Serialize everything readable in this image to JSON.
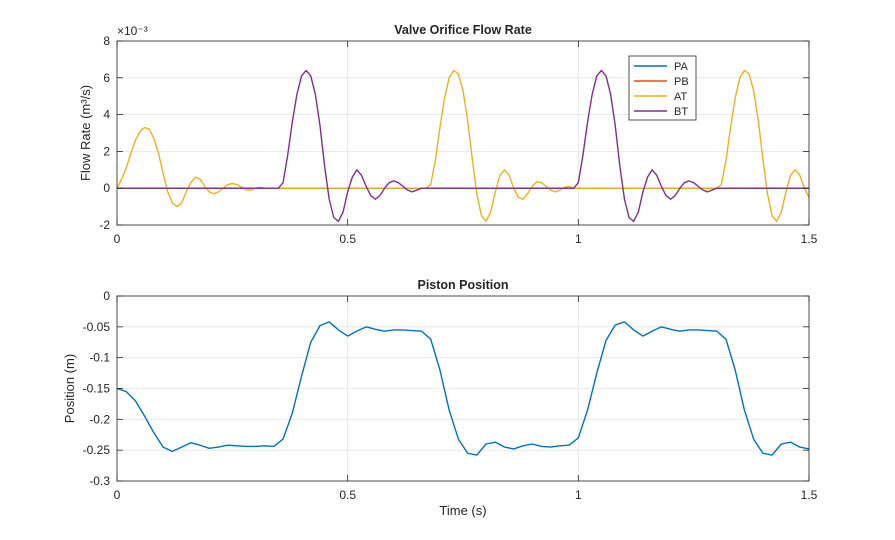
{
  "chart_data": [
    {
      "type": "line",
      "title": "Valve Orifice Flow Rate",
      "ylabel": "Flow  Rate  (m³/s)",
      "xlabel": "",
      "xlim": [
        0,
        1.5
      ],
      "ylim": [
        -2,
        8
      ],
      "y_exponent_label": "×10⁻³",
      "xticks": [
        0,
        0.5,
        1,
        1.5
      ],
      "xtick_labels": [
        "0",
        "0.5",
        "1",
        "1.5"
      ],
      "yticks": [
        -2,
        0,
        2,
        4,
        6,
        8
      ],
      "ytick_labels": [
        "-2",
        "0",
        "2",
        "4",
        "6",
        "8"
      ],
      "grid": true,
      "legend": "top-right",
      "series": [
        {
          "name": "PA",
          "color": "#0072BD",
          "x": [
            0,
            1.5
          ],
          "y": [
            0,
            0
          ]
        },
        {
          "name": "PB",
          "color": "#D95319",
          "x": [
            0,
            1.5
          ],
          "y": [
            0,
            0
          ]
        },
        {
          "name": "AT",
          "color": "#EDB120",
          "x": [
            0,
            0.01,
            0.02,
            0.03,
            0.04,
            0.05,
            0.06,
            0.07,
            0.08,
            0.09,
            0.1,
            0.11,
            0.12,
            0.13,
            0.14,
            0.15,
            0.16,
            0.17,
            0.18,
            0.19,
            0.2,
            0.21,
            0.22,
            0.23,
            0.24,
            0.25,
            0.26,
            0.27,
            0.28,
            0.29,
            0.3,
            0.31,
            0.32,
            0.33,
            0.35,
            0.36,
            0.67,
            0.68,
            0.69,
            0.7,
            0.71,
            0.72,
            0.73,
            0.74,
            0.75,
            0.76,
            0.77,
            0.78,
            0.79,
            0.8,
            0.81,
            0.82,
            0.83,
            0.84,
            0.85,
            0.86,
            0.87,
            0.88,
            0.89,
            0.9,
            0.91,
            0.92,
            0.93,
            0.94,
            0.95,
            0.96,
            0.97,
            0.98,
            0.99,
            1.3,
            1.31,
            1.32,
            1.33,
            1.34,
            1.35,
            1.36,
            1.37,
            1.38,
            1.39,
            1.4,
            1.41,
            1.42,
            1.43,
            1.44,
            1.45,
            1.46,
            1.47,
            1.48,
            1.49,
            1.5
          ],
          "y": [
            0,
            0.5,
            1.1,
            1.9,
            2.6,
            3.1,
            3.3,
            3.2,
            2.7,
            1.9,
            0.8,
            -0.2,
            -0.8,
            -1.0,
            -0.8,
            -0.2,
            0.3,
            0.6,
            0.5,
            0.1,
            -0.2,
            -0.3,
            -0.2,
            0.0,
            0.2,
            0.25,
            0.2,
            0.05,
            -0.1,
            -0.1,
            0.0,
            0.05,
            0.0,
            0.0,
            0.0,
            0.0,
            0.0,
            0.2,
            1.5,
            3.3,
            4.9,
            6.0,
            6.4,
            6.2,
            5.3,
            3.7,
            1.6,
            -0.3,
            -1.5,
            -1.8,
            -1.3,
            -0.2,
            0.7,
            1.0,
            0.7,
            0.0,
            -0.5,
            -0.6,
            -0.3,
            0.1,
            0.35,
            0.3,
            0.1,
            -0.1,
            -0.2,
            -0.1,
            0.05,
            0.1,
            0.0,
            0.0,
            0.2,
            1.5,
            3.3,
            4.9,
            6.0,
            6.4,
            6.2,
            5.3,
            3.7,
            1.6,
            -0.3,
            -1.5,
            -1.8,
            -1.3,
            -0.2,
            0.7,
            1.0,
            0.7,
            0.0,
            -0.5
          ]
        },
        {
          "name": "BT",
          "color": "#7E2F8E",
          "x": [
            0,
            0.35,
            0.36,
            0.37,
            0.38,
            0.39,
            0.4,
            0.41,
            0.42,
            0.43,
            0.44,
            0.45,
            0.46,
            0.47,
            0.48,
            0.49,
            0.5,
            0.51,
            0.52,
            0.53,
            0.54,
            0.55,
            0.56,
            0.57,
            0.58,
            0.59,
            0.6,
            0.61,
            0.62,
            0.63,
            0.64,
            0.65,
            0.66,
            0.67,
            0.98,
            0.99,
            1.0,
            1.01,
            1.02,
            1.03,
            1.04,
            1.05,
            1.06,
            1.07,
            1.08,
            1.09,
            1.1,
            1.11,
            1.12,
            1.13,
            1.14,
            1.15,
            1.16,
            1.17,
            1.18,
            1.19,
            1.2,
            1.21,
            1.22,
            1.23,
            1.24,
            1.25,
            1.26,
            1.27,
            1.28,
            1.29,
            1.3,
            1.5
          ],
          "y": [
            0,
            0.0,
            0.3,
            1.8,
            3.6,
            5.1,
            6.1,
            6.4,
            6.1,
            5.1,
            3.4,
            1.2,
            -0.6,
            -1.6,
            -1.8,
            -1.3,
            -0.2,
            0.6,
            1.0,
            0.7,
            0.1,
            -0.4,
            -0.6,
            -0.4,
            0.0,
            0.3,
            0.4,
            0.3,
            0.1,
            -0.1,
            -0.2,
            -0.1,
            0.0,
            0.0,
            0.0,
            0.0,
            0.3,
            1.8,
            3.6,
            5.1,
            6.1,
            6.4,
            6.1,
            5.1,
            3.4,
            1.2,
            -0.6,
            -1.6,
            -1.8,
            -1.3,
            -0.2,
            0.6,
            1.0,
            0.7,
            0.1,
            -0.4,
            -0.6,
            -0.4,
            0.0,
            0.3,
            0.4,
            0.3,
            0.1,
            -0.1,
            -0.2,
            -0.1,
            0.0,
            0.0
          ]
        }
      ]
    },
    {
      "type": "line",
      "title": "Piston Position",
      "xlabel": "Time (s)",
      "ylabel": "Position (m)",
      "xlim": [
        0,
        1.5
      ],
      "ylim": [
        -0.3,
        0
      ],
      "xticks": [
        0,
        0.5,
        1,
        1.5
      ],
      "xtick_labels": [
        "0",
        "0.5",
        "1",
        "1.5"
      ],
      "yticks": [
        -0.3,
        -0.25,
        -0.2,
        -0.15,
        -0.1,
        -0.05,
        0
      ],
      "ytick_labels": [
        "-0.3",
        "-0.25",
        "-0.2",
        "-0.15",
        "-0.1",
        "-0.05",
        "0"
      ],
      "grid": true,
      "series": [
        {
          "color": "#0072BD",
          "x": [
            0,
            0.02,
            0.04,
            0.06,
            0.08,
            0.1,
            0.12,
            0.14,
            0.16,
            0.18,
            0.2,
            0.22,
            0.24,
            0.26,
            0.28,
            0.3,
            0.32,
            0.34,
            0.36,
            0.38,
            0.4,
            0.42,
            0.44,
            0.46,
            0.48,
            0.5,
            0.52,
            0.54,
            0.56,
            0.58,
            0.6,
            0.62,
            0.64,
            0.66,
            0.68,
            0.7,
            0.72,
            0.74,
            0.76,
            0.78,
            0.8,
            0.82,
            0.84,
            0.86,
            0.88,
            0.9,
            0.92,
            0.94,
            0.96,
            0.98,
            1.0,
            1.02,
            1.04,
            1.06,
            1.08,
            1.1,
            1.12,
            1.14,
            1.16,
            1.18,
            1.2,
            1.22,
            1.24,
            1.26,
            1.28,
            1.3,
            1.32,
            1.34,
            1.36,
            1.38,
            1.4,
            1.42,
            1.44,
            1.46,
            1.48,
            1.5
          ],
          "y": [
            -0.15,
            -0.155,
            -0.17,
            -0.195,
            -0.222,
            -0.245,
            -0.252,
            -0.245,
            -0.238,
            -0.242,
            -0.247,
            -0.245,
            -0.242,
            -0.243,
            -0.244,
            -0.244,
            -0.243,
            -0.244,
            -0.232,
            -0.19,
            -0.13,
            -0.075,
            -0.048,
            -0.042,
            -0.055,
            -0.065,
            -0.057,
            -0.05,
            -0.054,
            -0.057,
            -0.055,
            -0.055,
            -0.056,
            -0.057,
            -0.07,
            -0.12,
            -0.185,
            -0.232,
            -0.255,
            -0.258,
            -0.24,
            -0.237,
            -0.245,
            -0.248,
            -0.243,
            -0.24,
            -0.244,
            -0.245,
            -0.243,
            -0.242,
            -0.23,
            -0.185,
            -0.125,
            -0.072,
            -0.047,
            -0.042,
            -0.055,
            -0.065,
            -0.057,
            -0.05,
            -0.054,
            -0.057,
            -0.055,
            -0.055,
            -0.056,
            -0.057,
            -0.07,
            -0.12,
            -0.185,
            -0.232,
            -0.255,
            -0.258,
            -0.24,
            -0.237,
            -0.245,
            -0.248
          ]
        }
      ]
    }
  ]
}
